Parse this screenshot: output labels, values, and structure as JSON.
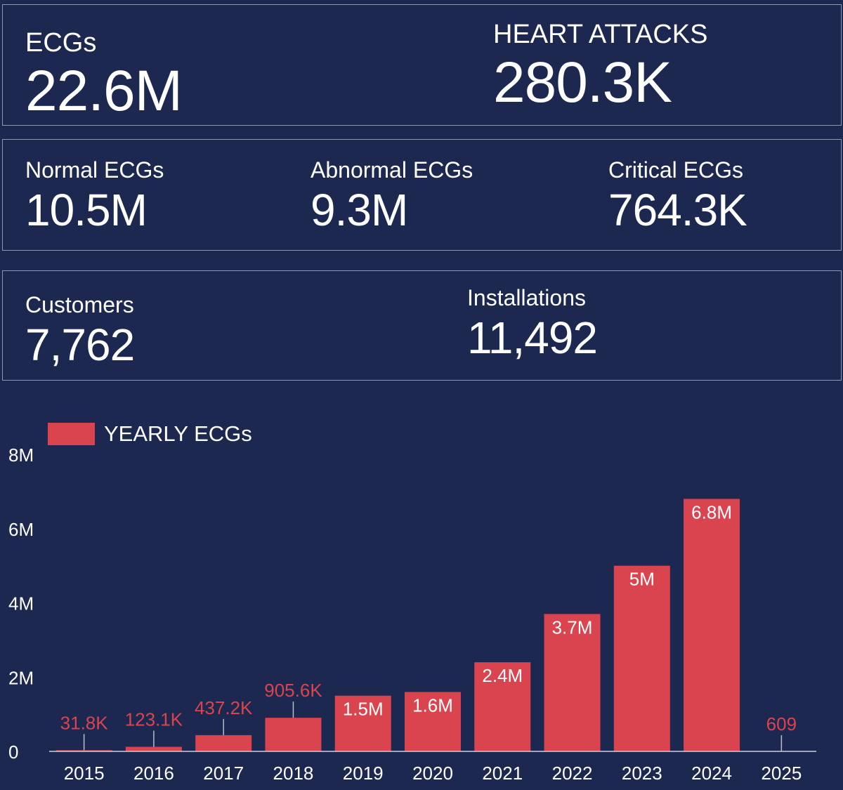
{
  "kpis": {
    "ecgs": {
      "label": "ECGs",
      "value": "22.6M"
    },
    "heart_attacks": {
      "label": "HEART ATTACKS",
      "value": "280.3K"
    },
    "normal_ecgs": {
      "label": "Normal ECGs",
      "value": "10.5M"
    },
    "abnormal_ecgs": {
      "label": "Abnormal ECGs",
      "value": "9.3M"
    },
    "critical_ecgs": {
      "label": "Critical ECGs",
      "value": "764.3K"
    },
    "customers": {
      "label": "Customers",
      "value": "7,762"
    },
    "installations": {
      "label": "Installations",
      "value": "11,492"
    }
  },
  "colors": {
    "background": "#1c2850",
    "bar": "#d9444f",
    "panel_border": "#8e97b3",
    "text": "#ffffff"
  },
  "chart_data": {
    "type": "bar",
    "title": "",
    "xlabel": "",
    "ylabel": "",
    "legend": "top-left",
    "series": [
      {
        "name": "YEARLY ECGs",
        "values": [
          31800,
          123100,
          437200,
          905600,
          1500000,
          1600000,
          2400000,
          3700000,
          5000000,
          6800000,
          609
        ]
      }
    ],
    "categories": [
      "2015",
      "2016",
      "2017",
      "2018",
      "2019",
      "2020",
      "2021",
      "2022",
      "2023",
      "2024",
      "2025"
    ],
    "data_labels": [
      "31.8K",
      "123.1K",
      "437.2K",
      "905.6K",
      "1.5M",
      "1.6M",
      "2.4M",
      "3.7M",
      "5M",
      "6.8M",
      "609"
    ],
    "ylim": [
      0,
      8000000
    ],
    "yticks": [
      0,
      2000000,
      4000000,
      6000000,
      8000000
    ],
    "ytick_labels": [
      "0",
      "2M",
      "4M",
      "6M",
      "8M"
    ],
    "grid": false
  }
}
